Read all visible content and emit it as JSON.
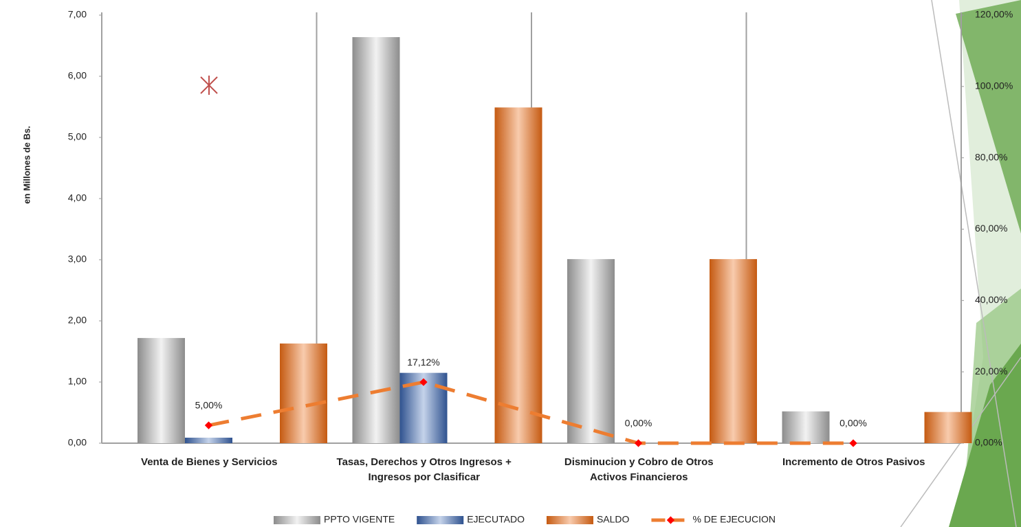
{
  "chart_data": {
    "type": "bar",
    "y_label": "en Millones de Bs.",
    "categories": [
      "Venta de Bienes y Servicios",
      "Tasas, Derechos y Otros Ingresos +\nIngresos por Clasificar",
      "Disminucion y Cobro de Otros\nActivos Financieros",
      "Incremento de Otros Pasivos"
    ],
    "series": [
      {
        "name": "PPTO VIGENTE",
        "color": "#a6a6a6",
        "values": [
          1.72,
          6.64,
          3.01,
          0.52
        ]
      },
      {
        "name": "EJECUTADO",
        "color": "#4a6fa5",
        "values": [
          0.09,
          1.15,
          0,
          0
        ]
      },
      {
        "name": "SALDO",
        "color": "#d9793a",
        "values": [
          1.63,
          5.49,
          3.01,
          0.51
        ]
      },
      {
        "name": "% DE EJECUCION",
        "color": "#ed7d31",
        "marker_color": "#ff0000",
        "axis": "y2",
        "type": "line",
        "values": [
          5.0,
          17.12,
          0.0,
          0.0
        ],
        "value_labels": [
          "5,00%",
          "17,12%",
          "0,00%",
          "0,00%"
        ]
      }
    ],
    "ylim": [
      0,
      7
    ],
    "yticks": [
      {
        "value": 0,
        "label": "0,00"
      },
      {
        "value": 1,
        "label": "1,00"
      },
      {
        "value": 2,
        "label": "2,00"
      },
      {
        "value": 3,
        "label": "3,00"
      },
      {
        "value": 4,
        "label": "4,00"
      },
      {
        "value": 5,
        "label": "5,00"
      },
      {
        "value": 6,
        "label": "6,00"
      },
      {
        "value": 7,
        "label": "7,00"
      }
    ],
    "y2lim": [
      0,
      120
    ],
    "y2ticks": [
      {
        "value": 0,
        "label": "0,00%"
      },
      {
        "value": 20,
        "label": "20,00%"
      },
      {
        "value": 40,
        "label": "40,00%"
      },
      {
        "value": 60,
        "label": "60,00%"
      },
      {
        "value": 80,
        "label": "80,00%"
      },
      {
        "value": 100,
        "label": "100,00%"
      },
      {
        "value": 120,
        "label": "120,00%"
      }
    ],
    "legend": "bottom"
  }
}
